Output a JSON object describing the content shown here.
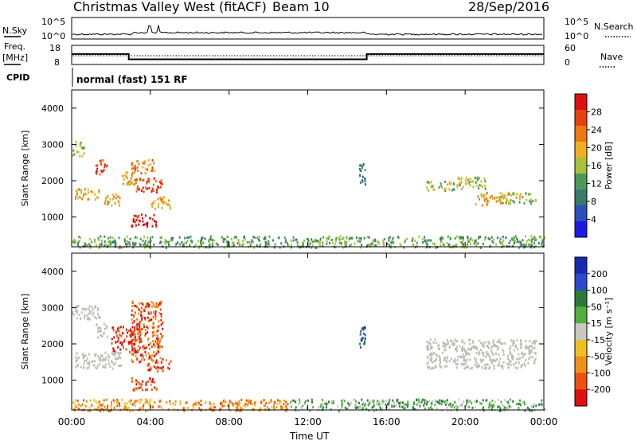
{
  "header": {
    "site": "Christmas Valley West (fitACF)",
    "beam": "Beam 10",
    "date": "28/Sep/2016"
  },
  "labels": {
    "nsky": "N.Sky",
    "nsearch": "N.Search",
    "freq": "Freq.",
    "freq_unit": "[MHz]",
    "nave": "Nave",
    "cpid": "CPID",
    "cpid_value": "normal (fast) 151 RF",
    "xlabel": "Time UT"
  },
  "ticks": {
    "noise_left": [
      "10^5",
      "10^0"
    ],
    "noise_right": [
      "10^5",
      "10^0"
    ],
    "freq_left": [
      "18",
      "8"
    ],
    "freq_right": [
      "60",
      "0"
    ]
  },
  "colors": {
    "power": [
      "#1a1ae6",
      "#2a4fbf",
      "#3a7a6a",
      "#4a9a5a",
      "#a6c23a",
      "#f0b020",
      "#f07810",
      "#e84010",
      "#e01010"
    ],
    "velocity": [
      "#1a2ab0",
      "#2a4ad0",
      "#2a7a3a",
      "#50b040",
      "#c8c8c0",
      "#f0c020",
      "#f09018",
      "#ee5010",
      "#e01010"
    ],
    "ground": "#bdbdb4"
  },
  "chart_data": [
    {
      "type": "heatmap",
      "title": "",
      "quantity": "Power",
      "xlabel": "",
      "ylabel": "Slant Range [km]",
      "x_ticks": [
        "00:00",
        "04:00",
        "08:00",
        "12:00",
        "16:00",
        "20:00",
        "00:00"
      ],
      "xlim_hours": [
        0,
        24
      ],
      "y_ticks": [
        1000,
        2000,
        3000,
        4000
      ],
      "ylim": [
        180,
        4500
      ],
      "colorbar": {
        "label": "Power [dB]",
        "ticks": [
          "4",
          "8",
          "12",
          "16",
          "20",
          "24",
          "28"
        ]
      },
      "echo_regions": [
        {
          "t0": 0.0,
          "t1": 0.6,
          "r0": 2700,
          "r1": 3100,
          "level": 4
        },
        {
          "t0": 0.1,
          "t1": 1.4,
          "r0": 1500,
          "r1": 1800,
          "level": 5
        },
        {
          "t0": 1.2,
          "t1": 1.8,
          "r0": 2200,
          "r1": 2600,
          "level": 7
        },
        {
          "t0": 1.5,
          "t1": 2.5,
          "r0": 1350,
          "r1": 1650,
          "level": 5
        },
        {
          "t0": 2.4,
          "t1": 3.2,
          "r0": 1900,
          "r1": 2300,
          "level": 5
        },
        {
          "t0": 3.0,
          "t1": 4.2,
          "r0": 2200,
          "r1": 2600,
          "level": 6
        },
        {
          "t0": 3.2,
          "t1": 4.6,
          "r0": 1700,
          "r1": 2100,
          "level": 7
        },
        {
          "t0": 4.0,
          "t1": 5.0,
          "r0": 1250,
          "r1": 1600,
          "level": 5
        },
        {
          "t0": 3.0,
          "t1": 4.3,
          "r0": 750,
          "r1": 1100,
          "level": 8
        },
        {
          "t0": 14.6,
          "t1": 14.9,
          "r0": 1900,
          "r1": 2500,
          "level": 2
        },
        {
          "t0": 18.0,
          "t1": 19.5,
          "r0": 1750,
          "r1": 2000,
          "level": 4
        },
        {
          "t0": 19.5,
          "t1": 21.0,
          "r0": 1800,
          "r1": 2150,
          "level": 4
        },
        {
          "t0": 20.5,
          "t1": 22.2,
          "r0": 1350,
          "r1": 1700,
          "level": 5
        },
        {
          "t0": 22.0,
          "t1": 23.6,
          "r0": 1400,
          "r1": 1700,
          "level": 4
        },
        {
          "t0": 0.0,
          "t1": 24.0,
          "r0": 180,
          "r1": 500,
          "level": 3
        }
      ]
    },
    {
      "type": "heatmap",
      "title": "",
      "quantity": "Velocity",
      "xlabel": "Time UT",
      "ylabel": "Slant Range [km]",
      "x_ticks": [
        "00:00",
        "04:00",
        "08:00",
        "12:00",
        "16:00",
        "20:00",
        "00:00"
      ],
      "xlim_hours": [
        0,
        24
      ],
      "y_ticks": [
        1000,
        2000,
        3000,
        4000
      ],
      "ylim": [
        180,
        4500
      ],
      "colorbar": {
        "label": "Velocity [m s⁻¹]",
        "ticks": [
          "200",
          "100",
          "50",
          "15",
          "-15",
          "-50",
          "-100",
          "-200"
        ]
      },
      "echo_regions": [
        {
          "t0": 0.0,
          "t1": 1.4,
          "r0": 2700,
          "r1": 3100,
          "level": "ground"
        },
        {
          "t0": 0.1,
          "t1": 2.5,
          "r0": 1350,
          "r1": 1800,
          "level": "ground"
        },
        {
          "t0": 1.2,
          "t1": 1.8,
          "r0": 2200,
          "r1": 2600,
          "level": "ground"
        },
        {
          "t0": 2.0,
          "t1": 3.5,
          "r0": 1800,
          "r1": 2500,
          "level": 8
        },
        {
          "t0": 3.0,
          "t1": 4.6,
          "r0": 1500,
          "r1": 3200,
          "level": 7
        },
        {
          "t0": 3.8,
          "t1": 5.0,
          "r0": 1250,
          "r1": 1600,
          "level": 7
        },
        {
          "t0": 3.0,
          "t1": 4.3,
          "r0": 750,
          "r1": 1100,
          "level": 7
        },
        {
          "t0": 14.6,
          "t1": 14.9,
          "r0": 1900,
          "r1": 2500,
          "level": 1
        },
        {
          "t0": 18.0,
          "t1": 23.6,
          "r0": 1350,
          "r1": 2150,
          "level": "ground"
        },
        {
          "t0": 0.0,
          "t1": 11.0,
          "r0": 180,
          "r1": 500,
          "level": 6
        },
        {
          "t0": 11.0,
          "t1": 24.0,
          "r0": 180,
          "r1": 500,
          "level": 3
        }
      ]
    }
  ],
  "frequency_mhz": [
    {
      "t0": 0,
      "t1": 2.9,
      "value": 13.5
    },
    {
      "t0": 2.9,
      "t1": 15.0,
      "value": 10.5
    },
    {
      "t0": 15.0,
      "t1": 24,
      "value": 13.5
    }
  ]
}
